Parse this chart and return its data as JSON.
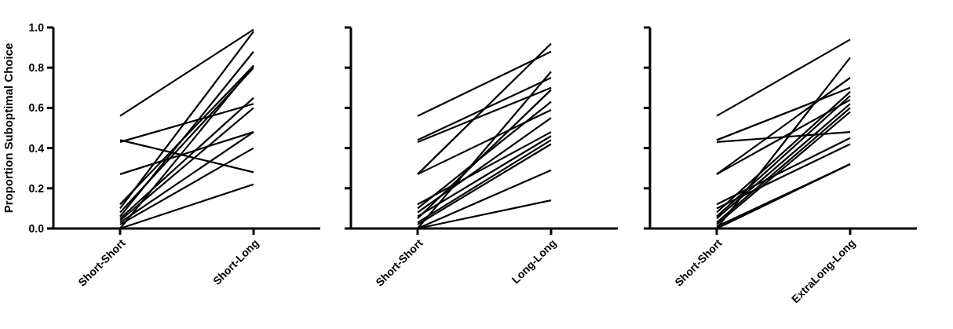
{
  "chart_data": [
    {
      "type": "line",
      "ylabel": "Proportion Suboptimal Choice",
      "categories": [
        "Short-Short",
        "Short-Long"
      ],
      "ylim": [
        0,
        1
      ],
      "yticks": [
        {
          "value": 0,
          "label": "0.0"
        },
        0.2,
        0.4,
        0.6,
        0.8,
        {
          "value": 1,
          "label": "1.0"
        }
      ],
      "marker": "none",
      "grid": false,
      "series": [
        {
          "color": "#000000",
          "values": [
            0.56,
            0.99
          ]
        },
        {
          "color": "#000000",
          "values": [
            0.44,
            0.28
          ]
        },
        {
          "color": "#000000",
          "values": [
            0.43,
            0.62
          ]
        },
        {
          "color": "#000000",
          "values": [
            0.27,
            0.48
          ]
        },
        {
          "color": "#000000",
          "values": [
            0.12,
            0.81
          ]
        },
        {
          "color": "#000000",
          "values": [
            0.1,
            0.98
          ]
        },
        {
          "color": "#000000",
          "values": [
            0.08,
            0.8
          ]
        },
        {
          "color": "#000000",
          "values": [
            0.06,
            0.88
          ]
        },
        {
          "color": "#000000",
          "values": [
            0.05,
            0.65
          ]
        },
        {
          "color": "#000000",
          "values": [
            0.04,
            0.6
          ]
        },
        {
          "color": "#000000",
          "values": [
            0.03,
            0.48
          ]
        },
        {
          "color": "#000000",
          "values": [
            0.02,
            0.4
          ]
        },
        {
          "color": "#000000",
          "values": [
            0,
            0.81
          ]
        },
        {
          "color": "#000000",
          "values": [
            0,
            0.22
          ]
        }
      ]
    },
    {
      "type": "line",
      "categories": [
        "Short-Short",
        "Long-Long"
      ],
      "ylim": [
        0,
        1
      ],
      "yticks": [
        0,
        0.2,
        0.4,
        0.6,
        0.8,
        1
      ],
      "tick_labels": "x",
      "marker": "none",
      "grid": false,
      "series": [
        {
          "color": "#000000",
          "values": [
            0.56,
            0.88
          ]
        },
        {
          "color": "#000000",
          "values": [
            0.44,
            0.75
          ]
        },
        {
          "color": "#000000",
          "values": [
            0.43,
            0.7
          ]
        },
        {
          "color": "#000000",
          "values": [
            0.27,
            0.92
          ]
        },
        {
          "color": "#000000",
          "values": [
            0.27,
            0.59
          ]
        },
        {
          "color": "#000000",
          "values": [
            0.12,
            0.48
          ]
        },
        {
          "color": "#000000",
          "values": [
            0.1,
            0.63
          ]
        },
        {
          "color": "#000000",
          "values": [
            0.08,
            0.55
          ]
        },
        {
          "color": "#000000",
          "values": [
            0.06,
            0.46
          ]
        },
        {
          "color": "#000000",
          "values": [
            0.05,
            0.69
          ]
        },
        {
          "color": "#000000",
          "values": [
            0.03,
            0.44
          ]
        },
        {
          "color": "#000000",
          "values": [
            0.02,
            0.42
          ]
        },
        {
          "color": "#000000",
          "values": [
            0,
            0.78
          ]
        },
        {
          "color": "#000000",
          "values": [
            0,
            0.29
          ]
        },
        {
          "color": "#000000",
          "values": [
            0,
            0.14
          ]
        }
      ]
    },
    {
      "type": "line",
      "categories": [
        "Short-Short",
        "ExtraLong-Long"
      ],
      "ylim": [
        0,
        1
      ],
      "yticks": [
        0,
        0.2,
        0.4,
        0.6,
        0.8,
        1
      ],
      "tick_labels": "x",
      "marker": "none",
      "grid": false,
      "series": [
        {
          "color": "#000000",
          "values": [
            0.56,
            0.94
          ]
        },
        {
          "color": "#000000",
          "values": [
            0.44,
            0.7
          ]
        },
        {
          "color": "#000000",
          "values": [
            0.43,
            0.48
          ]
        },
        {
          "color": "#000000",
          "values": [
            0.27,
            0.75
          ]
        },
        {
          "color": "#000000",
          "values": [
            0.27,
            0.64
          ]
        },
        {
          "color": "#000000",
          "values": [
            0.12,
            0.45
          ]
        },
        {
          "color": "#000000",
          "values": [
            0.1,
            0.42
          ]
        },
        {
          "color": "#000000",
          "values": [
            0.08,
            0.68
          ]
        },
        {
          "color": "#000000",
          "values": [
            0.06,
            0.66
          ]
        },
        {
          "color": "#000000",
          "values": [
            0.05,
            0.62
          ]
        },
        {
          "color": "#000000",
          "values": [
            0.03,
            0.6
          ]
        },
        {
          "color": "#000000",
          "values": [
            0.02,
            0.58
          ]
        },
        {
          "color": "#000000",
          "values": [
            0,
            0.85
          ]
        },
        {
          "color": "#000000",
          "values": [
            0,
            0.32
          ]
        },
        {
          "color": "#000000",
          "values": [
            0.01,
            0.32
          ]
        }
      ]
    }
  ]
}
